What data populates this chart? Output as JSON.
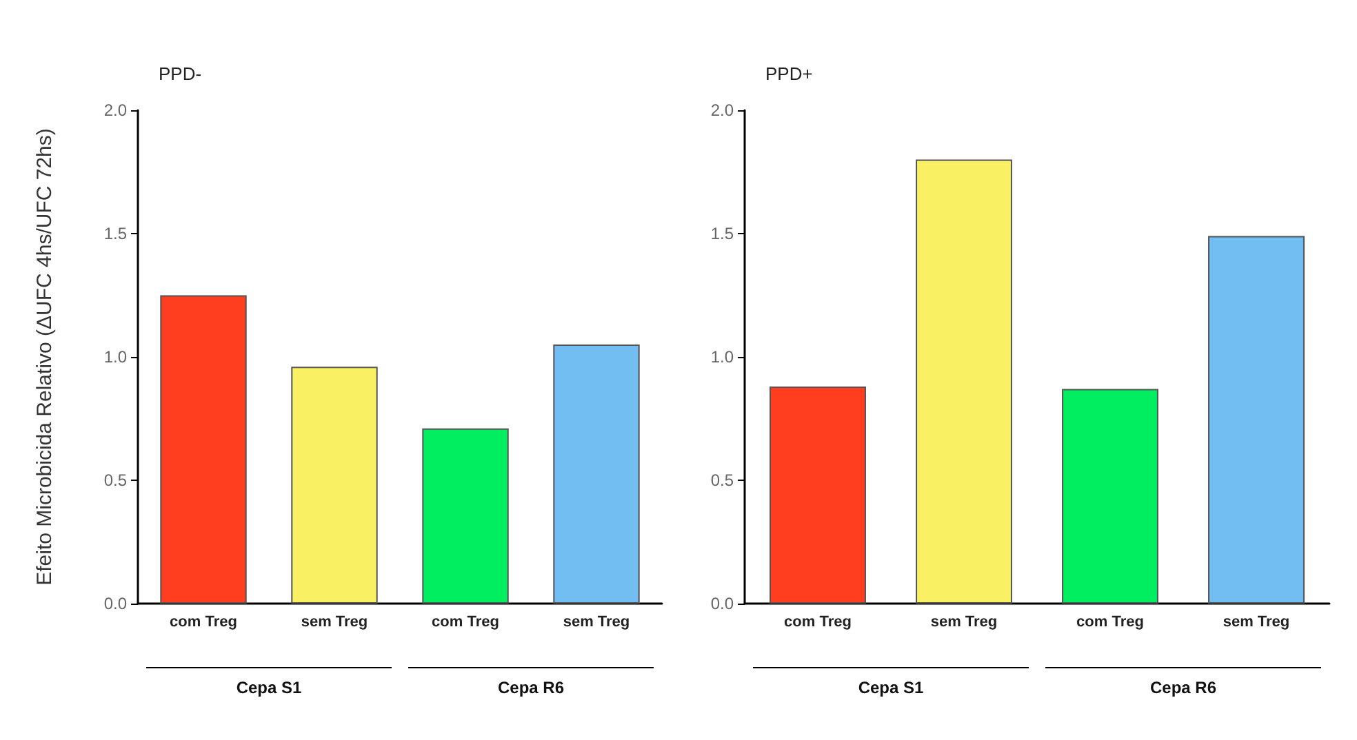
{
  "chart_data": [
    {
      "type": "bar",
      "title": "PPD-",
      "ylabel": "Efeito Microbicida Relativo (ΔUFC 4hs/UFC 72hs)",
      "categories": [
        "com Treg",
        "sem Treg",
        "com Treg",
        "sem Treg"
      ],
      "values": [
        1.25,
        0.96,
        0.71,
        1.05
      ],
      "colors": [
        "#ff3d1f",
        "#f9f064",
        "#00ee60",
        "#72bdf2"
      ],
      "ylim": [
        0,
        2
      ],
      "yticks": [
        {
          "value": 0,
          "label": "0.0"
        },
        {
          "value": 0.5,
          "label": "0.5"
        },
        {
          "value": 1,
          "label": "1.0"
        },
        {
          "value": 1.5,
          "label": "1.5"
        },
        {
          "value": 2,
          "label": "2.0"
        }
      ],
      "annotations": [
        "Cepa S1",
        "Cepa R6"
      ]
    },
    {
      "type": "bar",
      "title": "PPD+",
      "categories": [
        "com Treg",
        "sem Treg",
        "com Treg",
        "sem Treg"
      ],
      "values": [
        0.88,
        1.8,
        0.87,
        1.49
      ],
      "colors": [
        "#ff3d1f",
        "#f9f064",
        "#00ee60",
        "#72bdf2"
      ],
      "ylim": [
        0,
        2
      ],
      "yticks": [
        {
          "value": 0,
          "label": "0.0"
        },
        {
          "value": 0.5,
          "label": "0.5"
        },
        {
          "value": 1,
          "label": "1.0"
        },
        {
          "value": 1.5,
          "label": "1.5"
        },
        {
          "value": 2,
          "label": "2.0"
        }
      ],
      "annotations": [
        "Cepa S1",
        "Cepa R6"
      ]
    }
  ]
}
